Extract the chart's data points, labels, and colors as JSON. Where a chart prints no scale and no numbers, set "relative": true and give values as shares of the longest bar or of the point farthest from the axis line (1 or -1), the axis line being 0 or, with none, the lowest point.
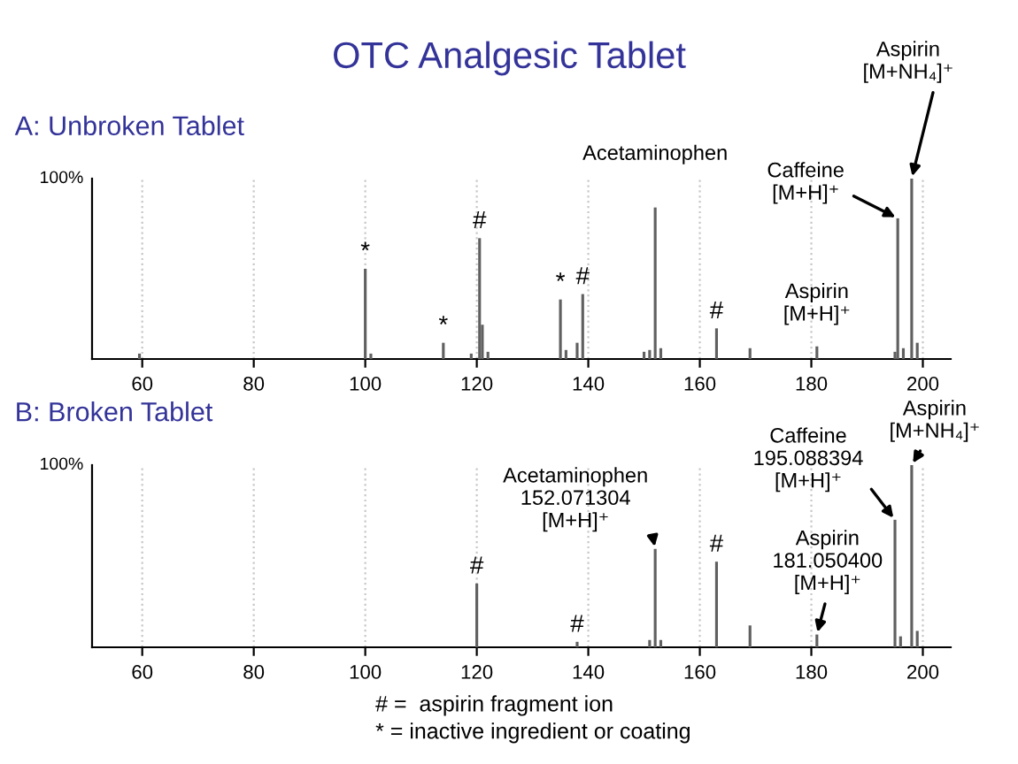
{
  "chart_data": [
    {
      "type": "bar",
      "title": "OTC Analgesic Tablet",
      "subtitle": "A: Unbroken Tablet",
      "relative": true,
      "color": "#606060",
      "x": [
        59.5,
        100,
        101,
        114,
        119,
        120.5,
        121,
        122,
        135,
        136,
        138,
        139,
        150,
        151,
        152,
        153,
        163,
        169,
        181,
        195,
        195.5,
        196.5,
        198,
        199
      ],
      "values": [
        0.03,
        0.5,
        0.03,
        0.09,
        0.03,
        0.67,
        0.19,
        0.04,
        0.33,
        0.05,
        0.09,
        0.36,
        0.04,
        0.05,
        0.84,
        0.06,
        0.17,
        0.06,
        0.07,
        0.04,
        0.78,
        0.06,
        1.0,
        0.09
      ],
      "xlim": [
        51,
        205
      ],
      "xticks": [
        60,
        80,
        100,
        120,
        140,
        160,
        180,
        200
      ],
      "grid": "x",
      "annotations": [
        "100%",
        {
          "text": "*",
          "x": 100,
          "y": 0.5
        },
        {
          "text": "*",
          "x": 114,
          "y": 0.09
        },
        {
          "text": "#",
          "x": 120.5,
          "y": 0.67
        },
        {
          "text": "*",
          "x": 135,
          "y": 0.33
        },
        {
          "text": "#",
          "x": 139,
          "y": 0.36
        },
        {
          "text": "#",
          "x": 163,
          "y": 0.17
        },
        {
          "text": "Acetaminophen",
          "x": 152,
          "y": 0.84
        },
        {
          "text": "Caffeine\n[M+H]⁺",
          "x": 195.5,
          "y": 0.78
        },
        {
          "text": "Aspirin\n[M+H]⁺",
          "x": 181,
          "y": 0.07
        },
        {
          "text": "Aspirin\n[M+NH₄]⁺",
          "x": 198,
          "y": 1.0
        }
      ]
    },
    {
      "type": "bar",
      "title": "B: Broken Tablet",
      "relative": true,
      "color": "#606060",
      "x": [
        120,
        138,
        151,
        152,
        153,
        163,
        169,
        181,
        195,
        196,
        198,
        199
      ],
      "values": [
        0.35,
        0.03,
        0.04,
        0.54,
        0.04,
        0.47,
        0.12,
        0.07,
        0.7,
        0.06,
        1.0,
        0.09
      ],
      "xlim": [
        51,
        205
      ],
      "xticks": [
        60,
        80,
        100,
        120,
        140,
        160,
        180,
        200
      ],
      "grid": "x",
      "annotations": [
        "100%",
        "# =  aspirin fragment ion",
        "* = inactive ingredient or coating",
        {
          "text": "#",
          "x": 120,
          "y": 0.35
        },
        {
          "text": "#",
          "x": 138,
          "y": 0.03
        },
        {
          "text": "#",
          "x": 163,
          "y": 0.47
        },
        {
          "text": "Acetaminophen\n152.071304\n[M+H]⁺",
          "x": 152,
          "y": 0.54
        },
        {
          "text": "Caffeine\n195.088394\n[M+H]⁺",
          "x": 195,
          "y": 0.7
        },
        {
          "text": "Aspirin\n181.050400\n[M+H]⁺",
          "x": 181,
          "y": 0.07
        },
        {
          "text": "Aspirin\n[M+NH₄]⁺",
          "x": 198,
          "y": 1.0
        }
      ]
    }
  ]
}
